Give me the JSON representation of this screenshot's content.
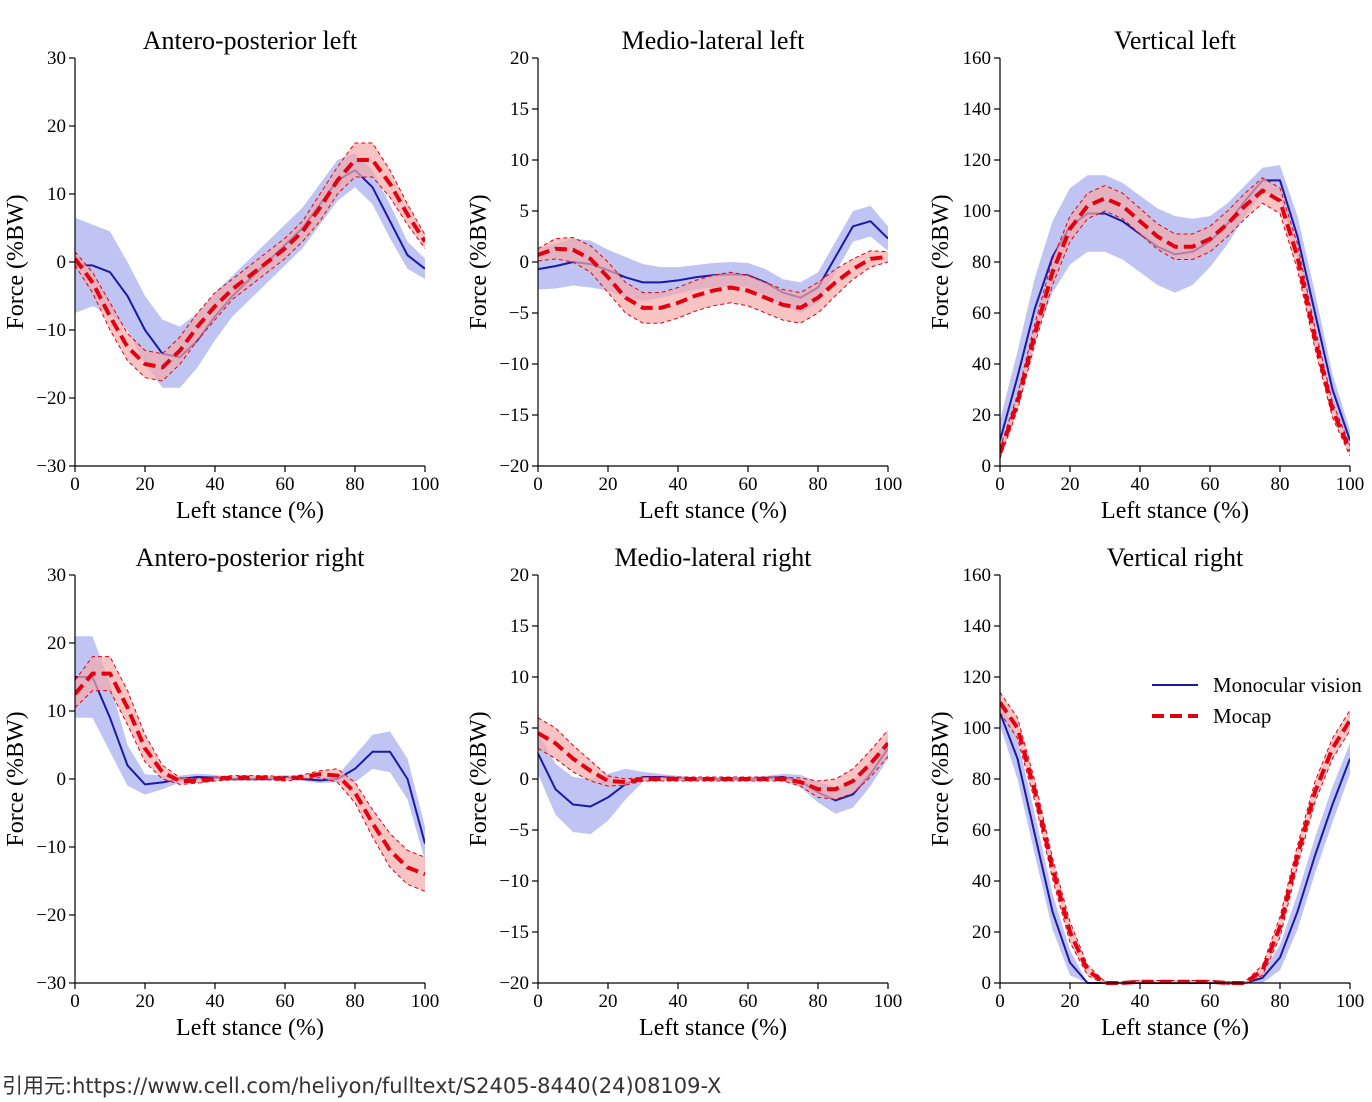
{
  "caption": "引用元:https://www.cell.com/heliyon/fulltext/S2405-8440(24)08109-X",
  "legend": {
    "monocular": "Monocular vision",
    "mocap": "Mocap"
  },
  "colors": {
    "monocular": "#1a1aa6",
    "monocular_band": "#aab0ef",
    "mocap": "#e3000f",
    "mocap_band": "#f4a9a9"
  },
  "chart_data": [
    {
      "type": "line",
      "title": "Antero-posterior left",
      "xlabel": "Left stance (%)",
      "ylabel": "Force (%BW)",
      "xlim": [
        0,
        100
      ],
      "ylim": [
        -30,
        30
      ],
      "xticks": [
        "0",
        "20",
        "40",
        "60",
        "80",
        "100"
      ],
      "yticks": [
        "−30",
        "−20",
        "−10",
        "0",
        "10",
        "20",
        "30"
      ],
      "x": [
        0,
        5,
        10,
        15,
        20,
        25,
        30,
        35,
        40,
        45,
        50,
        55,
        60,
        65,
        70,
        75,
        80,
        85,
        90,
        95,
        100
      ],
      "series": [
        {
          "name": "Monocular vision",
          "values": [
            -0.5,
            -0.5,
            -1.5,
            -5,
            -10,
            -13.5,
            -14,
            -11.5,
            -8,
            -5,
            -2.5,
            0,
            2.5,
            5,
            8.5,
            12,
            13.5,
            11,
            6,
            1,
            -1
          ],
          "band": [
            7,
            6,
            6,
            5,
            5,
            5,
            4.5,
            4,
            3.5,
            3,
            3,
            3,
            3,
            3,
            3,
            3,
            2.5,
            2.5,
            2.5,
            2,
            1.5
          ]
        },
        {
          "name": "Mocap",
          "values": [
            0.5,
            -3,
            -8,
            -12.5,
            -15,
            -15.5,
            -13,
            -9.5,
            -6.5,
            -4,
            -2,
            0,
            2,
            4.5,
            8,
            12,
            15,
            15,
            11.5,
            7,
            3
          ],
          "band": [
            1,
            1.5,
            2,
            2,
            2,
            2,
            2,
            2,
            2,
            1.5,
            1.5,
            1.5,
            1.5,
            1.5,
            2,
            2,
            2.5,
            2.5,
            2,
            1.5,
            1
          ]
        }
      ]
    },
    {
      "type": "line",
      "title": "Medio-lateral left",
      "xlabel": "Left stance (%)",
      "ylabel": "Force (%BW)",
      "xlim": [
        0,
        100
      ],
      "ylim": [
        -20,
        20
      ],
      "xticks": [
        "0",
        "20",
        "40",
        "60",
        "80",
        "100"
      ],
      "yticks": [
        "−20",
        "−15",
        "−10",
        "−5",
        "0",
        "5",
        "10",
        "15",
        "20"
      ],
      "x": [
        0,
        5,
        10,
        15,
        20,
        25,
        30,
        35,
        40,
        45,
        50,
        55,
        60,
        65,
        70,
        75,
        80,
        85,
        90,
        95,
        100
      ],
      "series": [
        {
          "name": "Monocular vision",
          "values": [
            -0.7,
            -0.4,
            0,
            -0.2,
            -0.8,
            -1.5,
            -2,
            -2,
            -1.8,
            -1.5,
            -1.3,
            -1.2,
            -1.3,
            -2,
            -3,
            -3.5,
            -2.5,
            0.5,
            3.5,
            4,
            2.3
          ],
          "band": [
            2,
            2.2,
            2.3,
            2.3,
            2,
            2,
            1.8,
            1.5,
            1.3,
            1.2,
            1.2,
            1.2,
            1.2,
            1.3,
            1.3,
            1.5,
            1.5,
            1.5,
            1.5,
            1.5,
            1.2
          ]
        },
        {
          "name": "Mocap",
          "values": [
            0.7,
            1.3,
            1.2,
            0.3,
            -1.5,
            -3.5,
            -4.5,
            -4.5,
            -4,
            -3.3,
            -2.8,
            -2.5,
            -2.8,
            -3.5,
            -4.2,
            -4.5,
            -3.5,
            -2,
            -0.7,
            0.3,
            0.5
          ],
          "band": [
            0.6,
            1,
            1.2,
            1.3,
            1.5,
            1.5,
            1.5,
            1.5,
            1.5,
            1.5,
            1.5,
            1.5,
            1.5,
            1.5,
            1.5,
            1.5,
            1.5,
            1.3,
            1,
            0.8,
            0.5
          ]
        }
      ]
    },
    {
      "type": "line",
      "title": "Vertical left",
      "xlabel": "Left stance (%)",
      "ylabel": "Force (%BW)",
      "xlim": [
        0,
        100
      ],
      "ylim": [
        0,
        160
      ],
      "xticks": [
        "0",
        "20",
        "40",
        "60",
        "80",
        "100"
      ],
      "yticks": [
        "0",
        "20",
        "40",
        "60",
        "80",
        "100",
        "120",
        "140",
        "160"
      ],
      "x": [
        0,
        5,
        10,
        15,
        20,
        25,
        30,
        35,
        40,
        45,
        50,
        55,
        60,
        65,
        70,
        75,
        80,
        85,
        90,
        95,
        100
      ],
      "series": [
        {
          "name": "Monocular vision",
          "values": [
            10,
            35,
            62,
            82,
            94,
            99,
            99,
            96,
            91,
            86,
            83,
            84,
            88,
            95,
            104,
            112,
            112,
            90,
            60,
            30,
            10
          ],
          "band": [
            8,
            10,
            12,
            14,
            15,
            15,
            15,
            15,
            15,
            15,
            15,
            13,
            10,
            8,
            6,
            5,
            6,
            8,
            8,
            6,
            4
          ]
        },
        {
          "name": "Mocap",
          "values": [
            5,
            25,
            52,
            76,
            93,
            102,
            105,
            102,
            96,
            90,
            86,
            86,
            89,
            95,
            102,
            108,
            104,
            82,
            50,
            22,
            6
          ],
          "band": [
            2,
            3,
            4,
            5,
            5,
            5,
            5,
            5,
            5,
            5,
            5,
            5,
            5,
            5,
            5,
            5,
            5,
            5,
            4,
            3,
            2
          ]
        }
      ]
    },
    {
      "type": "line",
      "title": "Antero-posterior right",
      "xlabel": "Left stance (%)",
      "ylabel": "Force (%BW)",
      "xlim": [
        0,
        100
      ],
      "ylim": [
        -30,
        30
      ],
      "xticks": [
        "0",
        "20",
        "40",
        "60",
        "80",
        "100"
      ],
      "yticks": [
        "−30",
        "−20",
        "−10",
        "0",
        "10",
        "20",
        "30"
      ],
      "x": [
        0,
        5,
        10,
        15,
        20,
        25,
        30,
        35,
        40,
        45,
        50,
        55,
        60,
        65,
        70,
        75,
        80,
        85,
        90,
        95,
        100
      ],
      "series": [
        {
          "name": "Monocular vision",
          "values": [
            15,
            15,
            9,
            2,
            -0.8,
            -0.5,
            0,
            0.3,
            0.2,
            0,
            0,
            0,
            0.3,
            0,
            -0.2,
            0,
            1.5,
            4,
            4,
            0,
            -9.5
          ],
          "band": [
            6,
            6,
            5,
            3,
            1.5,
            1,
            0.5,
            0.5,
            0.4,
            0.3,
            0.3,
            0.3,
            0.3,
            0.3,
            0.4,
            0.5,
            2,
            2.5,
            3,
            3,
            2.5
          ]
        },
        {
          "name": "Mocap",
          "values": [
            12.5,
            15.5,
            15.5,
            10.5,
            4.5,
            1,
            -0.3,
            -0.3,
            0,
            0.2,
            0.2,
            0.2,
            0,
            0.3,
            0.7,
            0.5,
            -2,
            -6.5,
            -10.5,
            -13,
            -14
          ],
          "band": [
            2,
            2.5,
            2.5,
            2.5,
            2,
            1,
            0.5,
            0.3,
            0.3,
            0.3,
            0.3,
            0.3,
            0.3,
            0.3,
            0.5,
            1,
            1.5,
            2,
            2.5,
            2.5,
            2.5
          ]
        }
      ]
    },
    {
      "type": "line",
      "title": "Medio-lateral right",
      "xlabel": "Left stance (%)",
      "ylabel": "Force (%BW)",
      "xlim": [
        0,
        100
      ],
      "ylim": [
        -20,
        20
      ],
      "xticks": [
        "0",
        "20",
        "40",
        "60",
        "80",
        "100"
      ],
      "yticks": [
        "−20",
        "−15",
        "−10",
        "−5",
        "0",
        "5",
        "10",
        "15",
        "20"
      ],
      "x": [
        0,
        5,
        10,
        15,
        20,
        25,
        30,
        35,
        40,
        45,
        50,
        55,
        60,
        65,
        70,
        75,
        80,
        85,
        90,
        95,
        100
      ],
      "series": [
        {
          "name": "Monocular vision",
          "values": [
            2.5,
            -1,
            -2.5,
            -2.7,
            -1.8,
            -0.5,
            0.2,
            0.2,
            0.1,
            0,
            0,
            0,
            0,
            0.1,
            0.2,
            -0.2,
            -1.3,
            -2.1,
            -1.5,
            0.5,
            3
          ],
          "band": [
            2,
            2.5,
            2.7,
            2.7,
            2.3,
            1.5,
            0.5,
            0.3,
            0.2,
            0.2,
            0.2,
            0.2,
            0.2,
            0.2,
            0.3,
            0.6,
            1,
            1.3,
            1.3,
            1.2,
            1
          ]
        },
        {
          "name": "Mocap",
          "values": [
            4.5,
            3.5,
            2,
            0.8,
            -0.2,
            -0.3,
            0,
            0,
            0,
            0,
            0,
            0,
            0,
            0,
            0,
            -0.3,
            -1,
            -1,
            -0.2,
            1.5,
            3.5
          ],
          "band": [
            1.5,
            1.5,
            1.3,
            1,
            0.5,
            0.3,
            0.2,
            0.2,
            0.2,
            0.2,
            0.2,
            0.2,
            0.2,
            0.2,
            0.2,
            0.4,
            0.8,
            1,
            1.2,
            1.3,
            1.3
          ]
        }
      ]
    },
    {
      "type": "line",
      "title": "Vertical right",
      "xlabel": "Left stance (%)",
      "ylabel": "Force (%BW)",
      "xlim": [
        0,
        100
      ],
      "ylim": [
        0,
        160
      ],
      "xticks": [
        "0",
        "20",
        "40",
        "60",
        "80",
        "100"
      ],
      "yticks": [
        "0",
        "20",
        "40",
        "60",
        "80",
        "100",
        "120",
        "140",
        "160"
      ],
      "x": [
        0,
        5,
        10,
        15,
        20,
        25,
        30,
        35,
        40,
        45,
        50,
        55,
        60,
        65,
        70,
        75,
        80,
        85,
        90,
        95,
        100
      ],
      "series": [
        {
          "name": "Monocular vision",
          "values": [
            106,
            88,
            58,
            28,
            8,
            0,
            0,
            0,
            0,
            0,
            0,
            0,
            0,
            0,
            0,
            2,
            10,
            28,
            50,
            70,
            88
          ],
          "band": [
            5,
            8,
            8,
            7,
            5,
            0,
            0,
            0,
            0.5,
            0.5,
            0.5,
            0.5,
            0.5,
            0,
            0,
            2,
            5,
            7,
            7,
            7,
            6
          ]
        },
        {
          "name": "Mocap",
          "values": [
            110,
            100,
            75,
            45,
            20,
            5,
            0,
            0,
            0.5,
            0.5,
            0.5,
            0.5,
            0.5,
            0,
            0,
            5,
            22,
            50,
            75,
            92,
            103
          ],
          "band": [
            4,
            4,
            4,
            4,
            4,
            2,
            0.5,
            0.5,
            0.5,
            0.5,
            0.5,
            0.5,
            0.5,
            0.5,
            0.5,
            2,
            4,
            4,
            4,
            4,
            4
          ]
        }
      ]
    }
  ]
}
